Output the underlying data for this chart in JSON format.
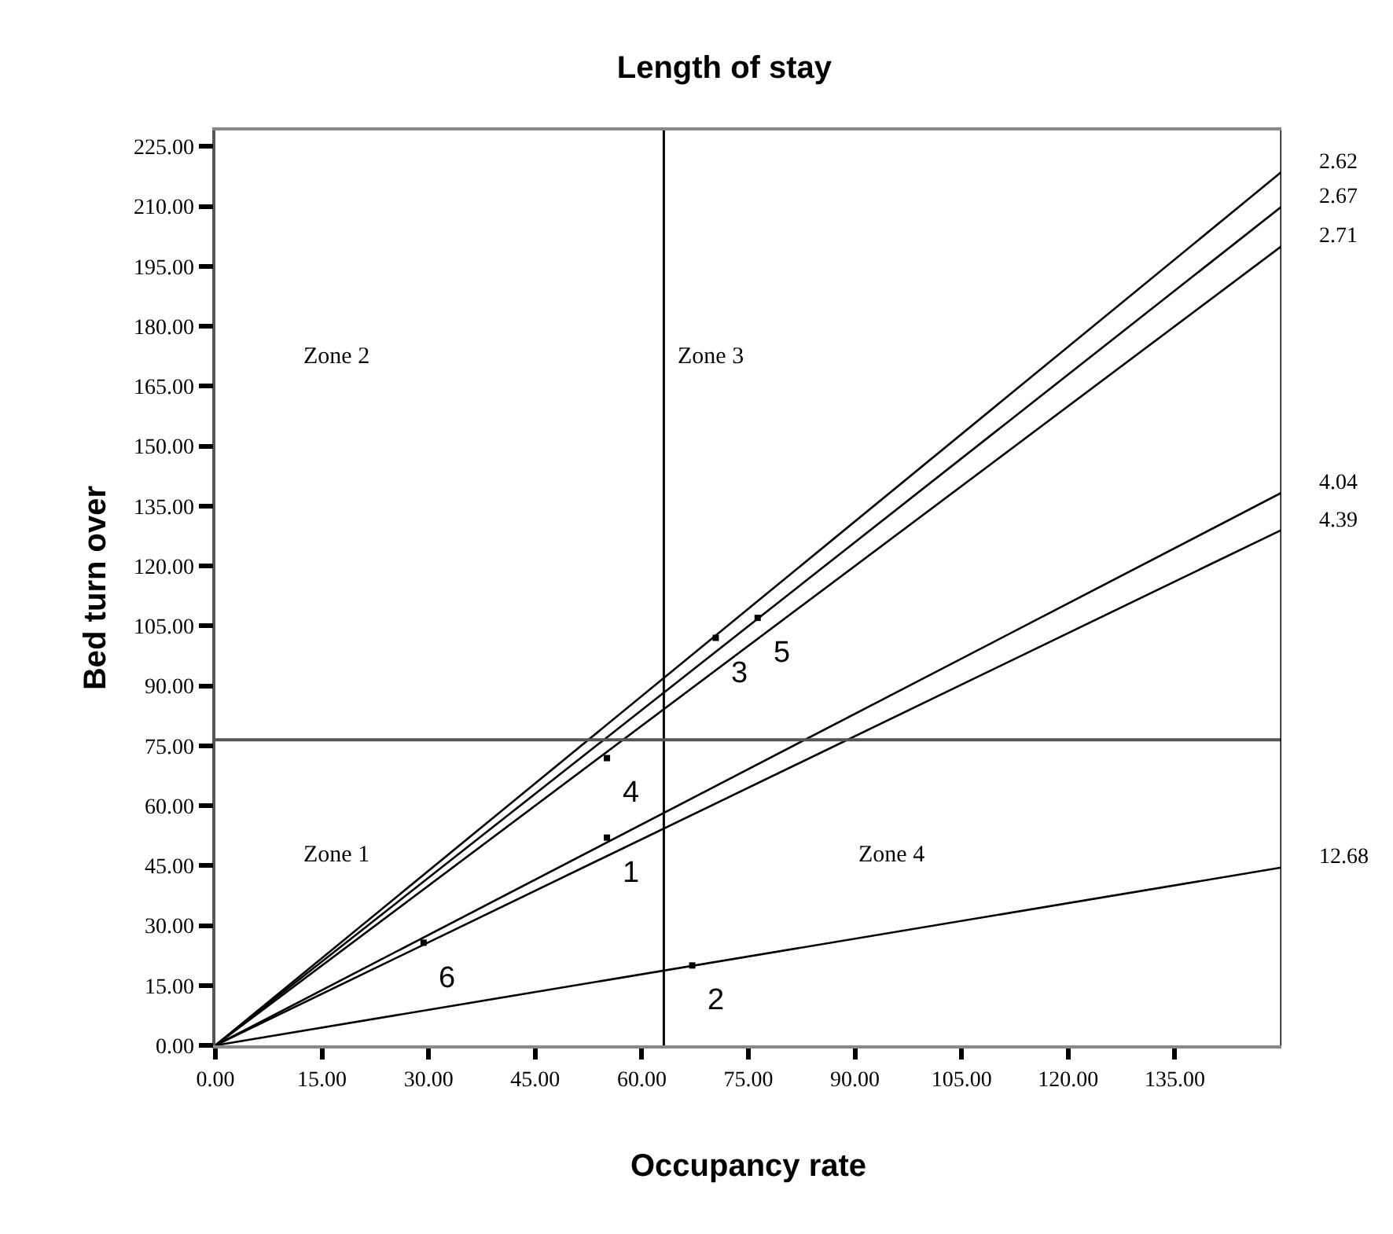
{
  "chart_data": {
    "type": "line",
    "title": "Length of stay",
    "xlabel": "Occupancy rate",
    "ylabel": "Bed turn over",
    "xlim": [
      0,
      150
    ],
    "ylim": [
      0,
      229
    ],
    "xticks": [
      {
        "value": 0,
        "label": "0.00"
      },
      {
        "value": 15,
        "label": "15.00"
      },
      {
        "value": 30,
        "label": "30.00"
      },
      {
        "value": 45,
        "label": "45.00"
      },
      {
        "value": 60,
        "label": "60.00"
      },
      {
        "value": 75,
        "label": "75.00"
      },
      {
        "value": 90,
        "label": "90.00"
      },
      {
        "value": 105,
        "label": "105.00"
      },
      {
        "value": 120,
        "label": "120.00"
      },
      {
        "value": 135,
        "label": "135.00"
      }
    ],
    "yticks": [
      {
        "value": 0,
        "label": "0.00"
      },
      {
        "value": 15,
        "label": "15.00"
      },
      {
        "value": 30,
        "label": "30.00"
      },
      {
        "value": 45,
        "label": "45.00"
      },
      {
        "value": 60,
        "label": "60.00"
      },
      {
        "value": 75,
        "label": "75.00"
      },
      {
        "value": 90,
        "label": "90.00"
      },
      {
        "value": 105,
        "label": "105.00"
      },
      {
        "value": 120,
        "label": "120.00"
      },
      {
        "value": 135,
        "label": "135.00"
      },
      {
        "value": 150,
        "label": "150.00"
      },
      {
        "value": 165,
        "label": "165.00"
      },
      {
        "value": 180,
        "label": "180.00"
      },
      {
        "value": 195,
        "label": "195.00"
      },
      {
        "value": 210,
        "label": "210.00"
      },
      {
        "value": 225,
        "label": "225.00"
      }
    ],
    "legend": false,
    "line_style": "solid",
    "series": [
      {
        "name": "2.62",
        "color": "#000000",
        "x": [
          0,
          150
        ],
        "values": [
          0,
          218.6
        ]
      },
      {
        "name": "2.67",
        "color": "#000000",
        "x": [
          0,
          150
        ],
        "values": [
          0,
          209.9
        ]
      },
      {
        "name": "2.71",
        "color": "#000000",
        "x": [
          0,
          150
        ],
        "values": [
          0,
          200
        ]
      },
      {
        "name": "4.04",
        "color": "#000000",
        "x": [
          0,
          150
        ],
        "values": [
          0,
          138.3
        ]
      },
      {
        "name": "4.39",
        "color": "#000000",
        "x": [
          0,
          150
        ],
        "values": [
          0,
          129
        ]
      },
      {
        "name": "12.68",
        "color": "#000000",
        "x": [
          0,
          150
        ],
        "values": [
          0,
          44.5
        ]
      },
      {
        "type": "scatter",
        "name": "6",
        "marker": "square",
        "color": "#000000",
        "x": [
          29.3
        ],
        "values": [
          25.7
        ]
      },
      {
        "type": "scatter",
        "name": "1",
        "marker": "square",
        "color": "#000000",
        "x": [
          55.1
        ],
        "values": [
          52
        ]
      },
      {
        "type": "scatter",
        "name": "4",
        "marker": "square",
        "color": "#000000",
        "x": [
          55.1
        ],
        "values": [
          71.9
        ]
      },
      {
        "type": "scatter",
        "name": "2",
        "marker": "square",
        "color": "#000000",
        "x": [
          67.1
        ],
        "values": [
          20
        ]
      },
      {
        "type": "scatter",
        "name": "3",
        "marker": "square",
        "color": "#000000",
        "x": [
          70.4
        ],
        "values": [
          102
        ]
      },
      {
        "type": "scatter",
        "name": "5",
        "marker": "square",
        "color": "#000000",
        "x": [
          76.3
        ],
        "values": [
          107
        ]
      }
    ],
    "ref_lines": [
      {
        "axis": "x",
        "value": 63.1,
        "color": "#000000"
      },
      {
        "axis": "y",
        "value": 76.5,
        "color": "#555555"
      },
      {
        "axis": "x",
        "value": 150,
        "color": "#000000"
      }
    ],
    "annotations": [
      "Zone 1",
      "Zone 2",
      "Zone 3",
      "Zone 4"
    ]
  }
}
